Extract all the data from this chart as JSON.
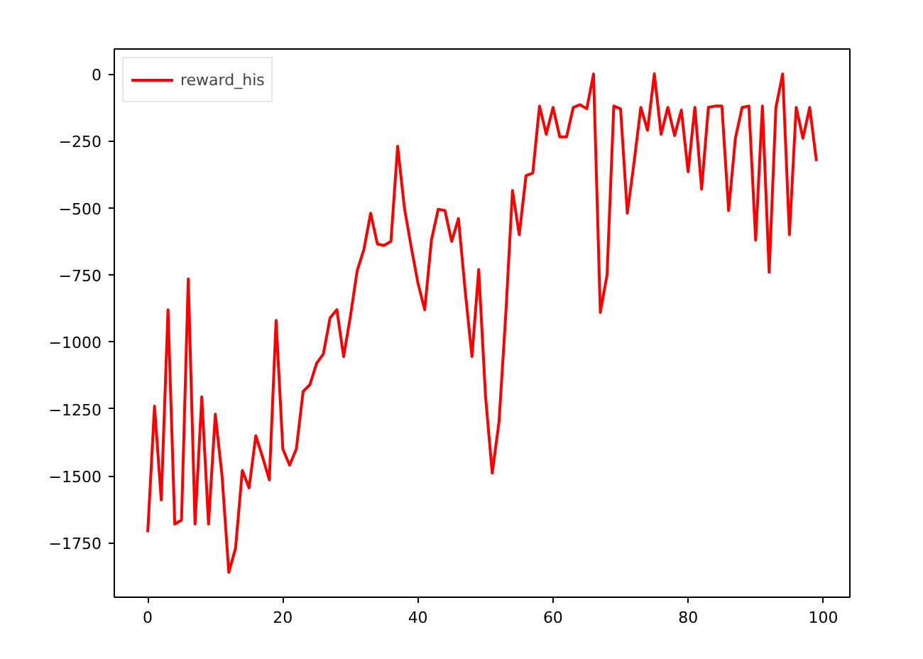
{
  "chart_data": {
    "type": "line",
    "x": [
      0,
      1,
      2,
      3,
      4,
      5,
      6,
      7,
      8,
      9,
      10,
      11,
      12,
      13,
      14,
      15,
      16,
      17,
      18,
      19,
      20,
      21,
      22,
      23,
      24,
      25,
      26,
      27,
      28,
      29,
      30,
      31,
      32,
      33,
      34,
      35,
      36,
      37,
      38,
      39,
      40,
      41,
      42,
      43,
      44,
      45,
      46,
      47,
      48,
      49,
      50,
      51,
      52,
      53,
      54,
      55,
      56,
      57,
      58,
      59,
      60,
      61,
      62,
      63,
      64,
      65,
      66,
      67,
      68,
      69,
      70,
      71,
      72,
      73,
      74,
      75,
      76,
      77,
      78,
      79,
      80,
      81,
      82,
      83,
      84,
      85,
      86,
      87,
      88,
      89,
      90,
      91,
      92,
      93,
      94,
      95,
      96,
      97,
      98,
      99
    ],
    "series": [
      {
        "name": "reward_his",
        "color": "#ff0000",
        "values": [
          -1710,
          -1240,
          -1590,
          -880,
          -1680,
          -1665,
          -765,
          -1680,
          -1205,
          -1680,
          -1270,
          -1500,
          -1860,
          -1770,
          -1480,
          -1545,
          -1350,
          -1430,
          -1515,
          -920,
          -1400,
          -1460,
          -1400,
          -1185,
          -1160,
          -1080,
          -1045,
          -910,
          -880,
          -1055,
          -905,
          -735,
          -655,
          -520,
          -635,
          -640,
          -625,
          -270,
          -500,
          -645,
          -780,
          -880,
          -620,
          -505,
          -510,
          -625,
          -540,
          -810,
          -1055,
          -730,
          -1200,
          -1490,
          -1300,
          -900,
          -435,
          -600,
          -380,
          -370,
          -120,
          -225,
          -125,
          -235,
          -235,
          -125,
          -115,
          -130,
          0,
          -890,
          -750,
          -120,
          -130,
          -520,
          -330,
          -125,
          -210,
          0,
          -225,
          -125,
          -230,
          -135,
          -365,
          -125,
          -430,
          -125,
          -120,
          -120,
          -510,
          -240,
          -125,
          -120,
          -620,
          -120,
          -740,
          -125,
          0,
          -600,
          -125,
          -240,
          -125,
          -325
        ]
      }
    ],
    "xlim": [
      -4.95,
      103.95
    ],
    "ylim": [
      -1953,
      93
    ],
    "xticks": [
      0,
      20,
      40,
      60,
      80,
      100
    ],
    "yticks": [
      0,
      -250,
      -500,
      -750,
      -1000,
      -1250,
      -1500,
      -1750
    ],
    "grid": false,
    "legend": "top left",
    "line_style": "solid",
    "marker": "none"
  }
}
